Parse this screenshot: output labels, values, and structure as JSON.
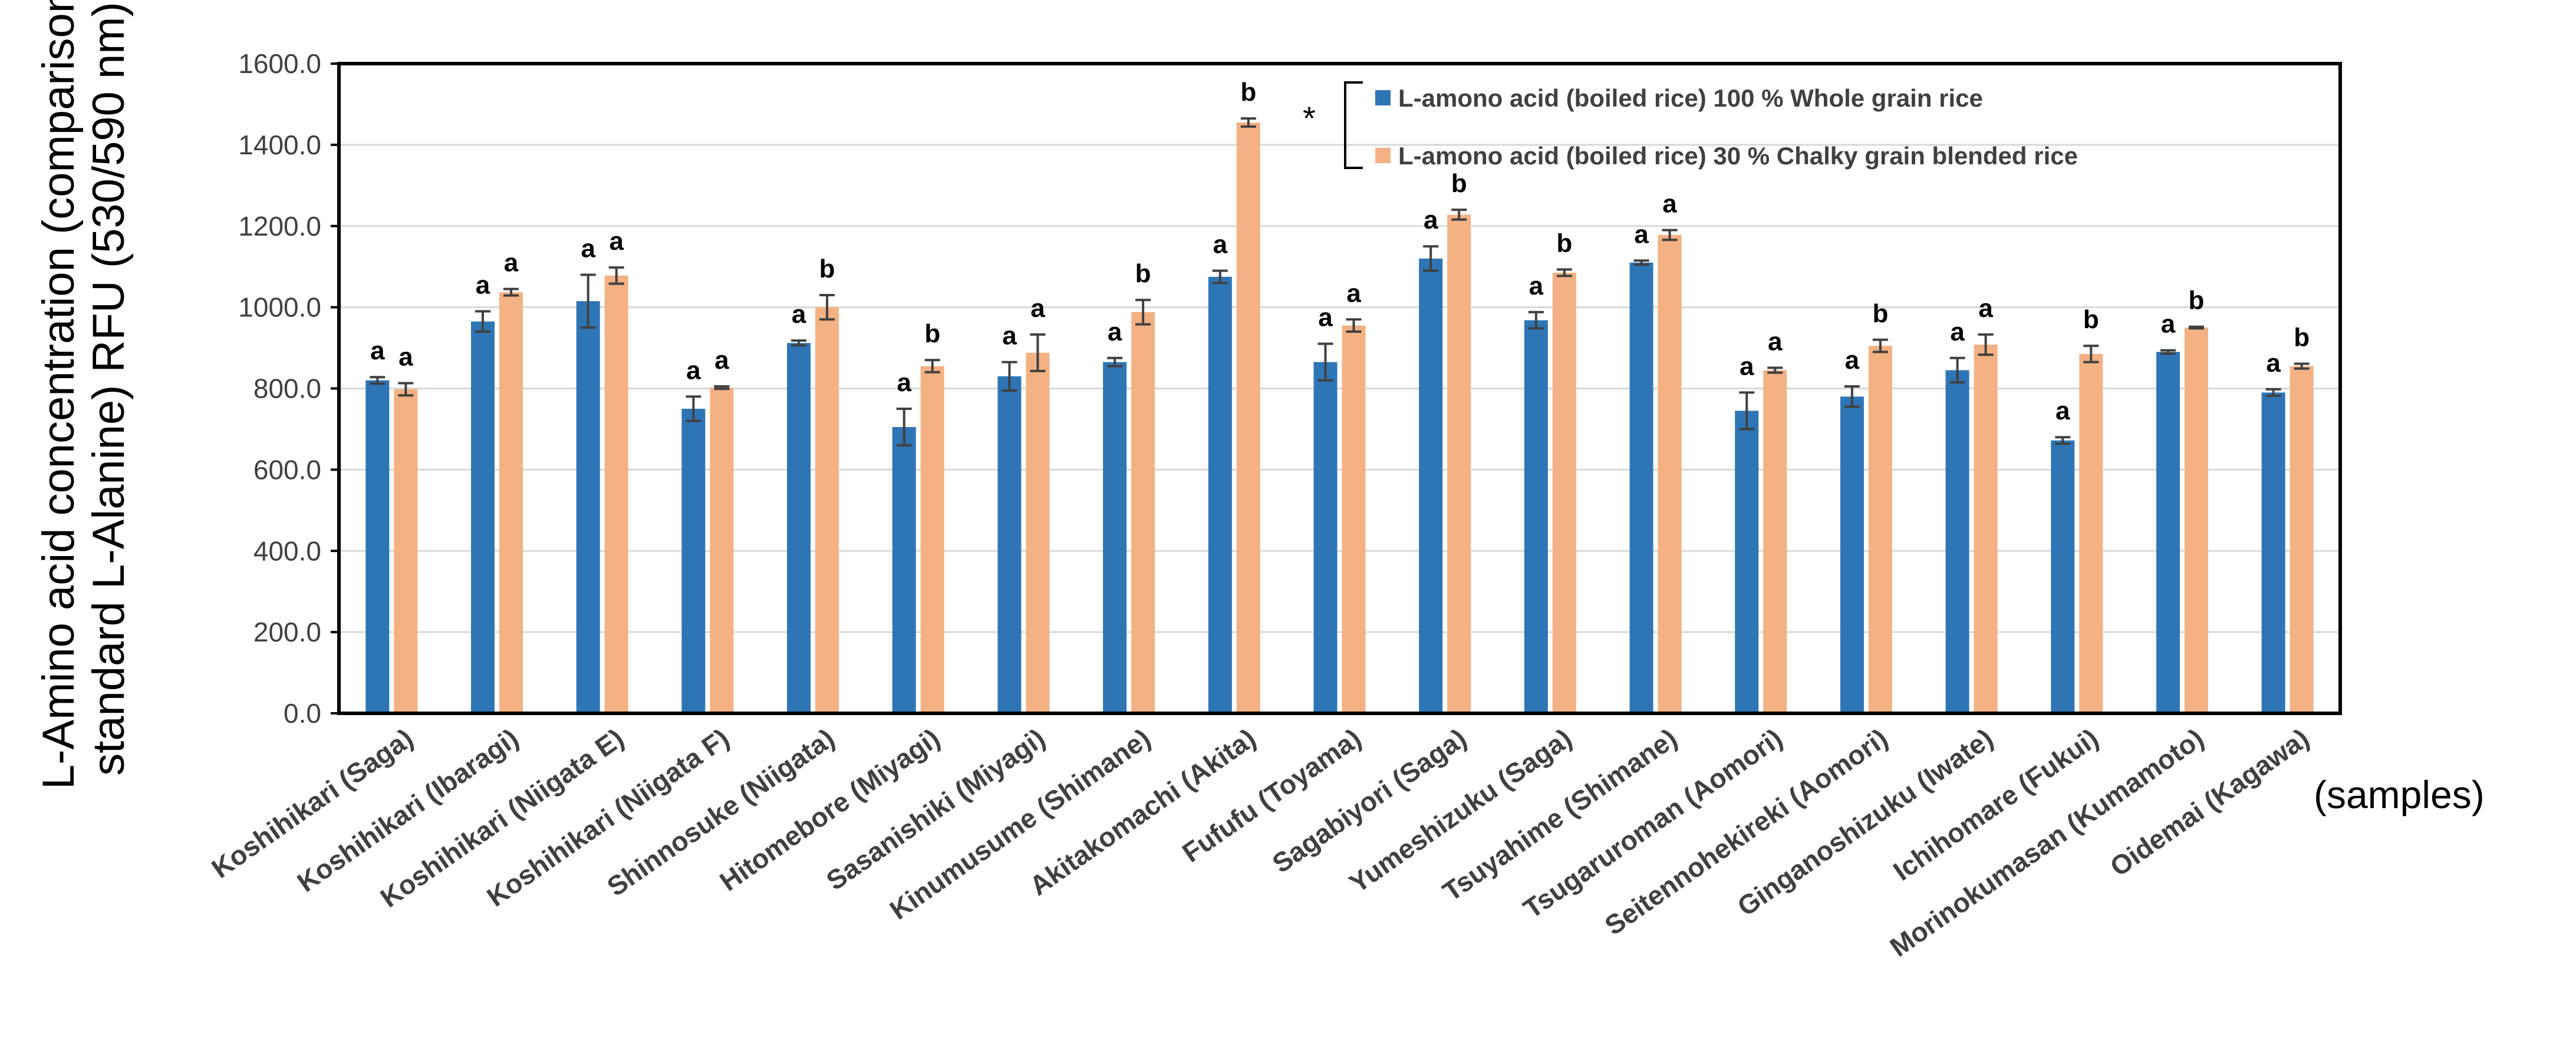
{
  "chart_data": {
    "type": "bar",
    "title": "",
    "ylabel_line1": "L-Amino acid concentration (comparison",
    "ylabel_line2": "standard L-Alanine) RFU (530/590 nm)",
    "xlabel": "(samples)",
    "ylim": [
      0,
      1600
    ],
    "yticks": [
      "0.0",
      "200.0",
      "400.0",
      "600.0",
      "800.0",
      "1000.0",
      "1200.0",
      "1400.0",
      "1600.0"
    ],
    "grid": true,
    "legend_position": "top-right",
    "legend_marker": "*",
    "categories": [
      "Koshihikari (Saga)",
      "Koshihikari (Ibaragi)",
      "Koshihikari (Niigata E)",
      "Koshihikari (Niigata F)",
      "Shinnosuke (Niigata)",
      "Hitomebore (Miyagi)",
      "Sasanishiki (Miyagi)",
      "Kinumusume (Shimane)",
      "Akitakomachi (Akita)",
      "Fufufu (Toyama)",
      "Sagabiyori (Saga)",
      "Yumeshizuku (Saga)",
      "Tsuyahime (Shimane)",
      "Tsugaruroman (Aomori)",
      "Seitennohekireki (Aomori)",
      "Ginganoshizuku (Iwate)",
      "Ichihomare (Fukui)",
      "Morinokumasan (Kumamoto)",
      "Oidemai (Kagawa)"
    ],
    "series": [
      {
        "name": "L-amono acid (boiled rice) 100 % Whole grain rice",
        "color": "#2e75b6",
        "values": [
          820,
          965,
          1015,
          750,
          912,
          705,
          830,
          865,
          1075,
          865,
          1120,
          968,
          1110,
          745,
          780,
          845,
          672,
          890,
          790
        ],
        "errors": [
          8,
          25,
          65,
          30,
          6,
          45,
          35,
          10,
          15,
          45,
          30,
          20,
          5,
          45,
          25,
          30,
          8,
          4,
          8
        ],
        "significance": [
          "a",
          "a",
          "a",
          "a",
          "a",
          "a",
          "a",
          "a",
          "a",
          "a",
          "a",
          "a",
          "a",
          "a",
          "a",
          "a",
          "a",
          "a",
          "a"
        ]
      },
      {
        "name": "L-amono acid (boiled rice) 30 % Chalky grain blended rice",
        "color": "#f4b183",
        "values": [
          798,
          1037,
          1078,
          802,
          1000,
          855,
          888,
          988,
          1455,
          955,
          1228,
          1085,
          1178,
          845,
          905,
          908,
          885,
          950,
          855
        ],
        "errors": [
          15,
          8,
          20,
          3,
          30,
          15,
          45,
          30,
          10,
          15,
          12,
          8,
          12,
          6,
          15,
          25,
          20,
          2,
          6
        ],
        "significance": [
          "a",
          "a",
          "a",
          "a",
          "b",
          "b",
          "a",
          "b",
          "b",
          "a",
          "b",
          "b",
          "a",
          "a",
          "b",
          "a",
          "b",
          "b",
          "b"
        ]
      }
    ]
  }
}
